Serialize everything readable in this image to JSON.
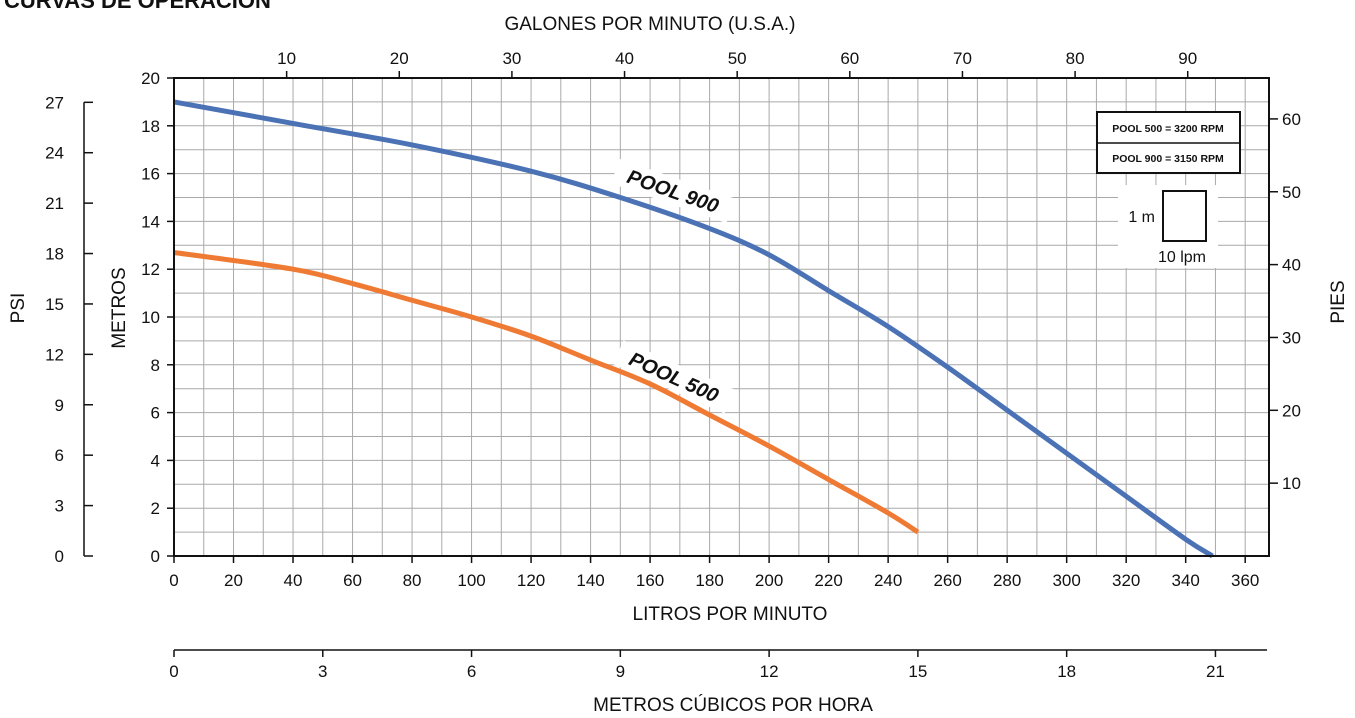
{
  "chart_data": {
    "type": "line",
    "title": "CURVAS DE OPERACIÓN",
    "xlabel": "LITROS POR MINUTO",
    "ylabel": "METROS",
    "x_top_label": "GALONES POR MINUTO (U.S.A.)",
    "y_left_outer_label": "PSI",
    "y_right_label": "PIES",
    "x2_label": "METROS CÚBICOS POR HORA",
    "xlim": [
      0,
      368
    ],
    "ylim": [
      0,
      20
    ],
    "x_ticks": [
      0,
      20,
      40,
      60,
      80,
      100,
      120,
      140,
      160,
      180,
      200,
      220,
      240,
      260,
      280,
      300,
      320,
      340,
      360
    ],
    "y_ticks": [
      0,
      2,
      4,
      6,
      8,
      10,
      12,
      14,
      16,
      18,
      20
    ],
    "gpm_ticks": [
      10,
      20,
      30,
      40,
      50,
      60,
      70,
      80,
      90
    ],
    "psi_ticks": [
      0,
      3,
      6,
      9,
      12,
      15,
      18,
      21,
      24,
      27
    ],
    "feet_ticks": [
      10,
      20,
      30,
      40,
      50,
      60
    ],
    "m3h_ticks": [
      0,
      3,
      6,
      9,
      12,
      15,
      18,
      21
    ],
    "grid": true,
    "series": [
      {
        "name": "POOL 900",
        "color": "#4a72b5",
        "x": [
          0,
          40,
          80,
          120,
          150,
          180,
          200,
          220,
          240,
          260,
          280,
          300,
          320,
          340,
          349
        ],
        "y": [
          19.0,
          18.1,
          17.2,
          16.1,
          15.0,
          13.7,
          12.6,
          11.1,
          9.6,
          7.9,
          6.1,
          4.3,
          2.5,
          0.7,
          0
        ]
      },
      {
        "name": "POOL 500",
        "color": "#ef7a34",
        "x": [
          0,
          40,
          60,
          80,
          100,
          120,
          140,
          160,
          180,
          200,
          220,
          240,
          250
        ],
        "y": [
          12.7,
          12.0,
          11.4,
          10.7,
          10.0,
          9.2,
          8.2,
          7.2,
          5.9,
          4.6,
          3.2,
          1.8,
          1.0
        ]
      }
    ],
    "legend": {
      "placement": "top-right",
      "lines": [
        "POOL 500 = 3200 RPM",
        "POOL 900 = 3150 RPM"
      ]
    },
    "scale_box": {
      "vertical": "1 m",
      "horizontal": "10 lpm"
    }
  }
}
